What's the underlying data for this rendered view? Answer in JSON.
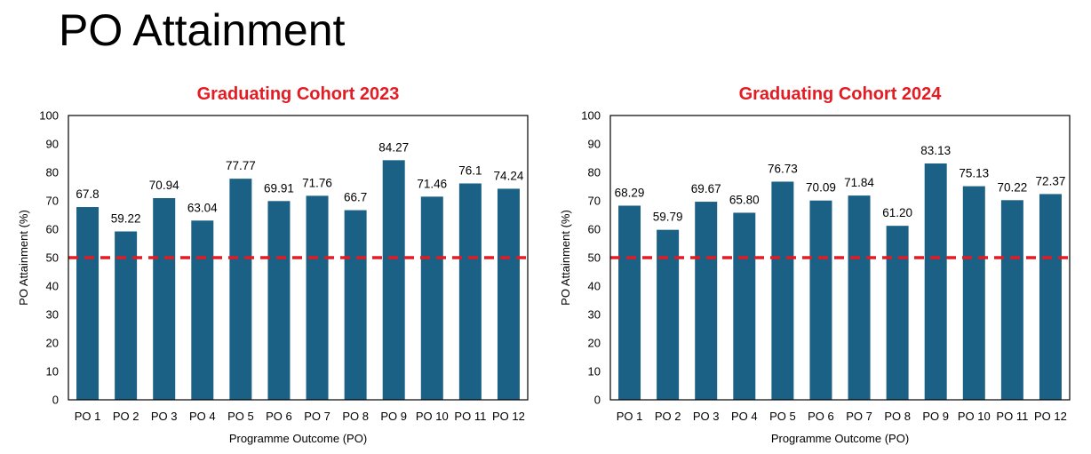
{
  "page": {
    "title": "PO Attainment"
  },
  "chart_data": [
    {
      "type": "bar",
      "title": "Graduating Cohort 2023",
      "xlabel": "Programme Outcome (PO)",
      "ylabel": "PO Attainment (%)",
      "ylim": [
        0,
        100
      ],
      "yticks": [
        0,
        10,
        20,
        30,
        40,
        50,
        60,
        70,
        80,
        90,
        100
      ],
      "categories": [
        "PO 1",
        "PO 2",
        "PO 3",
        "PO 4",
        "PO 5",
        "PO 6",
        "PO 7",
        "PO 8",
        "PO 9",
        "PO 10",
        "PO 11",
        "PO 12"
      ],
      "values": [
        67.8,
        59.22,
        70.94,
        63.04,
        77.77,
        69.91,
        71.76,
        66.7,
        84.27,
        71.46,
        76.1,
        74.24
      ],
      "value_labels": [
        "67.8",
        "59.22",
        "70.94",
        "63.04",
        "77.77",
        "69.91",
        "71.76",
        "66.7",
        "84.27",
        "71.46",
        "76.1",
        "74.24"
      ],
      "threshold": 50,
      "bar_color": "#1b6185",
      "threshold_color": "#e31b23",
      "title_color": "#e31b23"
    },
    {
      "type": "bar",
      "title": "Graduating Cohort 2024",
      "xlabel": "Programme Outcome (PO)",
      "ylabel": "PO Attainment (%)",
      "ylim": [
        0,
        100
      ],
      "yticks": [
        0,
        10,
        20,
        30,
        40,
        50,
        60,
        70,
        80,
        90,
        100
      ],
      "categories": [
        "PO 1",
        "PO 2",
        "PO 3",
        "PO 4",
        "PO 5",
        "PO 6",
        "PO 7",
        "PO 8",
        "PO 9",
        "PO 10",
        "PO 11",
        "PO 12"
      ],
      "values": [
        68.29,
        59.79,
        69.67,
        65.8,
        76.73,
        70.09,
        71.84,
        61.2,
        83.13,
        75.13,
        70.22,
        72.37
      ],
      "value_labels": [
        "68.29",
        "59.79",
        "69.67",
        "65.80",
        "76.73",
        "70.09",
        "71.84",
        "61.20",
        "83.13",
        "75.13",
        "70.22",
        "72.37"
      ],
      "threshold": 50,
      "bar_color": "#1b6185",
      "threshold_color": "#e31b23",
      "title_color": "#e31b23"
    }
  ]
}
